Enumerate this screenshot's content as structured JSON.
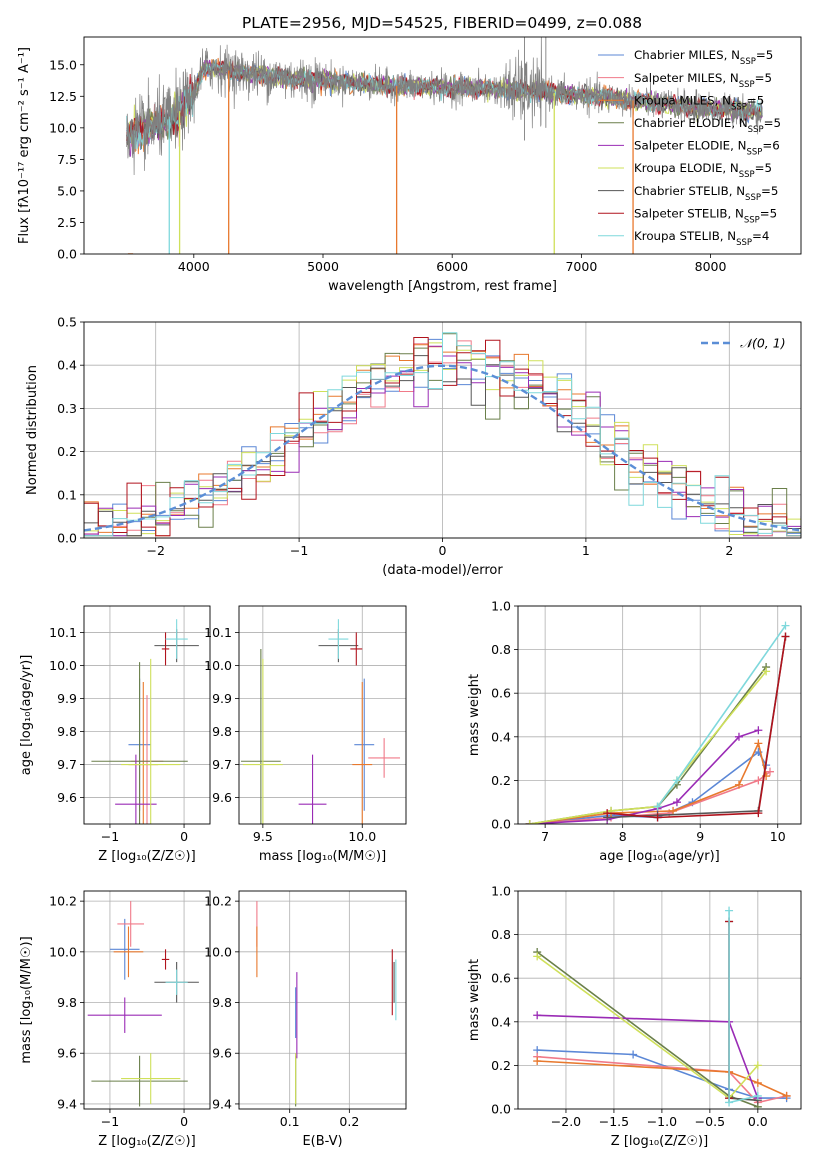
{
  "figure_title": "PLATE=2956, MJD=54525, FIBERID=0499, z=0.088",
  "chart_data": [
    {
      "id": "spectrum",
      "type": "line",
      "title": "PLATE=2956, MJD=54525, FIBERID=0499, z=0.088",
      "xlabel": "wavelength [Angstrom, rest frame]",
      "ylabel": "Flux [fλ10⁻¹⁷ erg cm⁻² s⁻¹ A⁻¹]",
      "xlim": [
        3150,
        8700
      ],
      "ylim": [
        0,
        17.2
      ],
      "xticks": [
        4000,
        5000,
        6000,
        7000,
        8000
      ],
      "yticks": [
        0.0,
        2.5,
        5.0,
        7.5,
        10.0,
        12.5,
        15.0
      ],
      "legend_position": "top-right",
      "grid": false,
      "data_range": [
        3480,
        8400
      ],
      "continuum": {
        "x": [
          3480,
          3600,
          3700,
          3800,
          3900,
          4000,
          4050,
          4100,
          4300,
          4500,
          4800,
          5000,
          5300,
          5600,
          6000,
          6300,
          6600,
          7000,
          7300,
          7600,
          7900,
          8100,
          8400
        ],
        "y": [
          9.3,
          9.8,
          10.2,
          10.6,
          11.4,
          12.6,
          14.2,
          14.8,
          14.5,
          14.2,
          13.9,
          13.8,
          13.5,
          13.3,
          13.2,
          13.1,
          12.9,
          12.6,
          12.3,
          11.9,
          11.6,
          11.5,
          11.3
        ]
      },
      "series": [
        {
          "name": "Chabrier MILES, N_SSP=5",
          "color": "#5b87d6"
        },
        {
          "name": "Salpeter MILES, N_SSP=5",
          "color": "#f07a89"
        },
        {
          "name": "Kroupa MILES, N_SSP=5",
          "color": "#e8792e"
        },
        {
          "name": "Chabrier ELODIE, N_SSP=5",
          "color": "#6a7f4a"
        },
        {
          "name": "Salpeter ELODIE, N_SSP=6",
          "color": "#9a2bb5"
        },
        {
          "name": "Kroupa ELODIE, N_SSP=5",
          "color": "#cfe05a"
        },
        {
          "name": "Chabrier STELIB, N_SSP=5",
          "color": "#555555"
        },
        {
          "name": "Salpeter STELIB, N_SSP=5",
          "color": "#b0131d"
        },
        {
          "name": "Kroupa STELIB, N_SSP=4",
          "color": "#7fd8dc"
        }
      ],
      "observed_color": "#808080"
    },
    {
      "id": "residuals",
      "type": "histogram",
      "xlabel": "(data-model)/error",
      "ylabel": "Normed distribution",
      "xlim": [
        -2.5,
        2.5
      ],
      "ylim": [
        0,
        0.5
      ],
      "xticks": [
        -2,
        -1,
        0,
        1,
        2
      ],
      "yticks": [
        0.0,
        0.1,
        0.2,
        0.3,
        0.4,
        0.5
      ],
      "grid": true,
      "bin_width": 0.1,
      "reference": {
        "name": "𝒩(0, 1)",
        "color": "#5b8ed6",
        "style": "dashed"
      },
      "legend_position": "top-right"
    },
    {
      "id": "age-vs-Z",
      "type": "errorbar",
      "xlabel": "Z [log₁₀(Z/Z☉)]",
      "ylabel": "age  [log₁₀(age/yr)]",
      "xlim": [
        -1.35,
        0.35
      ],
      "ylim": [
        9.52,
        10.18
      ],
      "xticks": [
        -1,
        0
      ],
      "yticks": [
        9.6,
        9.7,
        9.8,
        9.9,
        10.0,
        10.1
      ],
      "grid": true,
      "points": [
        {
          "x": -0.6,
          "y": 9.76,
          "xerr": 0.15,
          "yerr": 0.2,
          "s": 0
        },
        {
          "x": -0.5,
          "y": 9.71,
          "xerr": 0.22,
          "yerr": 0.2,
          "s": 1
        },
        {
          "x": -0.55,
          "y": 9.7,
          "xerr": 0.2,
          "yerr": 0.25,
          "s": 2
        },
        {
          "x": -0.6,
          "y": 9.71,
          "xerr": 0.65,
          "yerr": 0.3,
          "s": 3
        },
        {
          "x": -0.65,
          "y": 9.58,
          "xerr": 0.28,
          "yerr": 0.15,
          "s": 4
        },
        {
          "x": -0.45,
          "y": 9.7,
          "xerr": 0.4,
          "yerr": 0.32,
          "s": 5
        },
        {
          "x": -0.1,
          "y": 10.06,
          "xerr": 0.3,
          "yerr": 0.05,
          "s": 6
        },
        {
          "x": -0.25,
          "y": 10.05,
          "xerr": 0.05,
          "yerr": 0.05,
          "s": 7
        },
        {
          "x": -0.1,
          "y": 10.08,
          "xerr": 0.15,
          "yerr": 0.06,
          "s": 8
        }
      ]
    },
    {
      "id": "age-vs-mass",
      "type": "errorbar",
      "xlabel": "mass [log₁₀(M/M☉)]",
      "ylabel": "",
      "xlim": [
        9.38,
        10.22
      ],
      "ylim": [
        9.52,
        10.18
      ],
      "xticks": [
        9.5,
        10.0
      ],
      "yticks": [
        9.6,
        9.7,
        9.8,
        9.9,
        10.0,
        10.1
      ],
      "grid": true,
      "points": [
        {
          "x": 10.01,
          "y": 9.76,
          "xerr": 0.05,
          "yerr": 0.2,
          "s": 0
        },
        {
          "x": 10.11,
          "y": 9.72,
          "xerr": 0.08,
          "yerr": 0.06,
          "s": 1
        },
        {
          "x": 10.0,
          "y": 9.7,
          "xerr": 0.05,
          "yerr": 0.25,
          "s": 2
        },
        {
          "x": 9.49,
          "y": 9.71,
          "xerr": 0.1,
          "yerr": 0.34,
          "s": 3
        },
        {
          "x": 9.75,
          "y": 9.58,
          "xerr": 0.07,
          "yerr": 0.15,
          "s": 4
        },
        {
          "x": 9.5,
          "y": 9.7,
          "xerr": 0.1,
          "yerr": 0.32,
          "s": 5
        },
        {
          "x": 9.88,
          "y": 10.06,
          "xerr": 0.1,
          "yerr": 0.05,
          "s": 6
        },
        {
          "x": 9.97,
          "y": 10.05,
          "xerr": 0.03,
          "yerr": 0.05,
          "s": 7
        },
        {
          "x": 9.88,
          "y": 10.08,
          "xerr": 0.05,
          "yerr": 0.06,
          "s": 8
        }
      ]
    },
    {
      "id": "weight-vs-age",
      "type": "line",
      "xlabel": "age  [log₁₀(age/yr)]",
      "ylabel": "mass weight",
      "xlim": [
        6.65,
        10.3
      ],
      "ylim": [
        0,
        1
      ],
      "xticks": [
        7,
        8,
        9,
        10
      ],
      "yticks": [
        0.0,
        0.2,
        0.4,
        0.6,
        0.8,
        1.0
      ],
      "grid": true,
      "series": [
        {
          "s": 0,
          "points": [
            [
              6.8,
              0.0
            ],
            [
              7.85,
              0.04
            ],
            [
              8.45,
              0.03
            ],
            [
              8.9,
              0.1
            ],
            [
              9.75,
              0.33
            ],
            [
              9.85,
              0.27
            ]
          ]
        },
        {
          "s": 1,
          "points": [
            [
              6.8,
              0.0
            ],
            [
              7.85,
              0.03
            ],
            [
              8.6,
              0.05
            ],
            [
              9.75,
              0.2
            ],
            [
              9.9,
              0.24
            ]
          ]
        },
        {
          "s": 2,
          "points": [
            [
              6.8,
              0.0
            ],
            [
              7.85,
              0.05
            ],
            [
              8.65,
              0.06
            ],
            [
              9.5,
              0.18
            ],
            [
              9.75,
              0.37
            ],
            [
              9.85,
              0.22
            ]
          ]
        },
        {
          "s": 3,
          "points": [
            [
              6.8,
              0.0
            ],
            [
              7.85,
              0.06
            ],
            [
              8.45,
              0.08
            ],
            [
              8.7,
              0.18
            ],
            [
              9.85,
              0.72
            ]
          ]
        },
        {
          "s": 4,
          "points": [
            [
              6.8,
              0.0
            ],
            [
              7.8,
              0.02
            ],
            [
              8.45,
              0.07
            ],
            [
              8.7,
              0.1
            ],
            [
              9.5,
              0.4
            ],
            [
              9.75,
              0.43
            ]
          ]
        },
        {
          "s": 5,
          "points": [
            [
              6.8,
              0.0
            ],
            [
              7.85,
              0.06
            ],
            [
              8.45,
              0.08
            ],
            [
              8.7,
              0.2
            ],
            [
              9.85,
              0.7
            ]
          ]
        },
        {
          "s": 6,
          "points": [
            [
              7.8,
              0.03
            ],
            [
              8.45,
              0.04
            ],
            [
              9.75,
              0.06
            ],
            [
              10.1,
              0.86
            ]
          ]
        },
        {
          "s": 7,
          "points": [
            [
              7.8,
              0.05
            ],
            [
              8.45,
              0.03
            ],
            [
              9.75,
              0.05
            ],
            [
              10.1,
              0.86
            ]
          ]
        },
        {
          "s": 8,
          "points": [
            [
              8.45,
              0.08
            ],
            [
              8.7,
              0.2
            ],
            [
              10.1,
              0.91
            ]
          ]
        }
      ]
    },
    {
      "id": "mass-vs-Z",
      "type": "errorbar",
      "xlabel": "Z [log₁₀(Z/Z☉)]",
      "ylabel": "mass [log₁₀(M/M☉)]",
      "xlim": [
        -1.35,
        0.35
      ],
      "ylim": [
        9.38,
        10.24
      ],
      "xticks": [
        -1,
        0
      ],
      "yticks": [
        9.4,
        9.6,
        9.8,
        10.0,
        10.2
      ],
      "grid": true,
      "points": [
        {
          "x": -0.8,
          "y": 10.01,
          "xerr": 0.2,
          "yerr": 0.12,
          "s": 0
        },
        {
          "x": -0.72,
          "y": 10.11,
          "xerr": 0.18,
          "yerr": 0.09,
          "s": 1
        },
        {
          "x": -0.75,
          "y": 10.0,
          "xerr": 0.2,
          "yerr": 0.1,
          "s": 2
        },
        {
          "x": -0.6,
          "y": 9.49,
          "xerr": 0.65,
          "yerr": 0.1,
          "s": 3
        },
        {
          "x": -0.8,
          "y": 9.75,
          "xerr": 0.5,
          "yerr": 0.07,
          "s": 4
        },
        {
          "x": -0.45,
          "y": 9.5,
          "xerr": 0.4,
          "yerr": 0.1,
          "s": 5
        },
        {
          "x": -0.1,
          "y": 9.88,
          "xerr": 0.3,
          "yerr": 0.08,
          "s": 6
        },
        {
          "x": -0.25,
          "y": 9.97,
          "xerr": 0.05,
          "yerr": 0.04,
          "s": 7
        },
        {
          "x": -0.1,
          "y": 9.88,
          "xerr": 0.15,
          "yerr": 0.05,
          "s": 8
        }
      ]
    },
    {
      "id": "mass-vs-EBV",
      "type": "errorbar",
      "xlabel": "E(B-V)",
      "ylabel": "",
      "xlim": [
        0.015,
        0.295
      ],
      "ylim": [
        9.38,
        10.24
      ],
      "xticks": [
        0.1,
        0.2
      ],
      "yticks": [
        9.4,
        9.6,
        9.8,
        10.0,
        10.2
      ],
      "grid": true,
      "points": [
        {
          "x": 0.11,
          "y": 9.76,
          "xerr": 0.0,
          "yerr": 0.1,
          "s": 0
        },
        {
          "x": 0.045,
          "y": 10.11,
          "xerr": 0.0,
          "yerr": 0.09,
          "s": 1
        },
        {
          "x": 0.045,
          "y": 10.0,
          "xerr": 0.0,
          "yerr": 0.1,
          "s": 2
        },
        {
          "x": 0.11,
          "y": 9.49,
          "xerr": 0.0,
          "yerr": 0.1,
          "s": 3
        },
        {
          "x": 0.112,
          "y": 9.75,
          "xerr": 0.0,
          "yerr": 0.17,
          "s": 4
        },
        {
          "x": 0.11,
          "y": 9.5,
          "xerr": 0.0,
          "yerr": 0.1,
          "s": 5
        },
        {
          "x": 0.275,
          "y": 9.88,
          "xerr": 0.0,
          "yerr": 0.08,
          "s": 6
        },
        {
          "x": 0.272,
          "y": 9.88,
          "xerr": 0.0,
          "yerr": 0.13,
          "s": 7
        },
        {
          "x": 0.278,
          "y": 9.85,
          "xerr": 0.0,
          "yerr": 0.12,
          "s": 8
        }
      ]
    },
    {
      "id": "weight-vs-Z",
      "type": "line",
      "xlabel": "Z [log₁₀(Z/Z☉)]",
      "ylabel": "mass weight",
      "xlim": [
        -2.5,
        0.45
      ],
      "ylim": [
        0,
        1
      ],
      "xticks": [
        -2.0,
        -1.5,
        -1.0,
        -0.5,
        0.0
      ],
      "yticks": [
        0.0,
        0.2,
        0.4,
        0.6,
        0.8,
        1.0
      ],
      "grid": true,
      "series": [
        {
          "s": 0,
          "points": [
            [
              -2.3,
              0.27
            ],
            [
              -1.3,
              0.25
            ],
            [
              -0.3,
              0.09
            ],
            [
              0.0,
              0.05
            ],
            [
              0.3,
              0.05
            ]
          ]
        },
        {
          "s": 1,
          "points": [
            [
              -2.3,
              0.24
            ],
            [
              -0.3,
              0.17
            ],
            [
              0.0,
              0.03
            ],
            [
              0.3,
              0.06
            ]
          ]
        },
        {
          "s": 2,
          "points": [
            [
              -2.3,
              0.22
            ],
            [
              -0.3,
              0.17
            ],
            [
              0.0,
              0.12
            ],
            [
              0.3,
              0.06
            ]
          ]
        },
        {
          "s": 3,
          "points": [
            [
              -2.3,
              0.72
            ],
            [
              -0.3,
              0.06
            ],
            [
              0.0,
              0.01
            ]
          ]
        },
        {
          "s": 4,
          "points": [
            [
              -2.3,
              0.43
            ],
            [
              -0.3,
              0.4
            ],
            [
              0.0,
              0.05
            ]
          ]
        },
        {
          "s": 5,
          "points": [
            [
              -2.3,
              0.7
            ],
            [
              -0.3,
              0.05
            ],
            [
              0.0,
              0.2
            ]
          ]
        },
        {
          "s": 6,
          "points": [
            [
              -0.3,
              0.86
            ],
            [
              -0.3,
              0.05
            ],
            [
              0.0,
              0.04
            ]
          ]
        },
        {
          "s": 7,
          "points": [
            [
              -0.3,
              0.86
            ],
            [
              -0.3,
              0.05
            ]
          ]
        },
        {
          "s": 8,
          "points": [
            [
              -0.3,
              0.91
            ],
            [
              -0.3,
              0.03
            ],
            [
              0.0,
              0.06
            ]
          ]
        }
      ]
    }
  ]
}
